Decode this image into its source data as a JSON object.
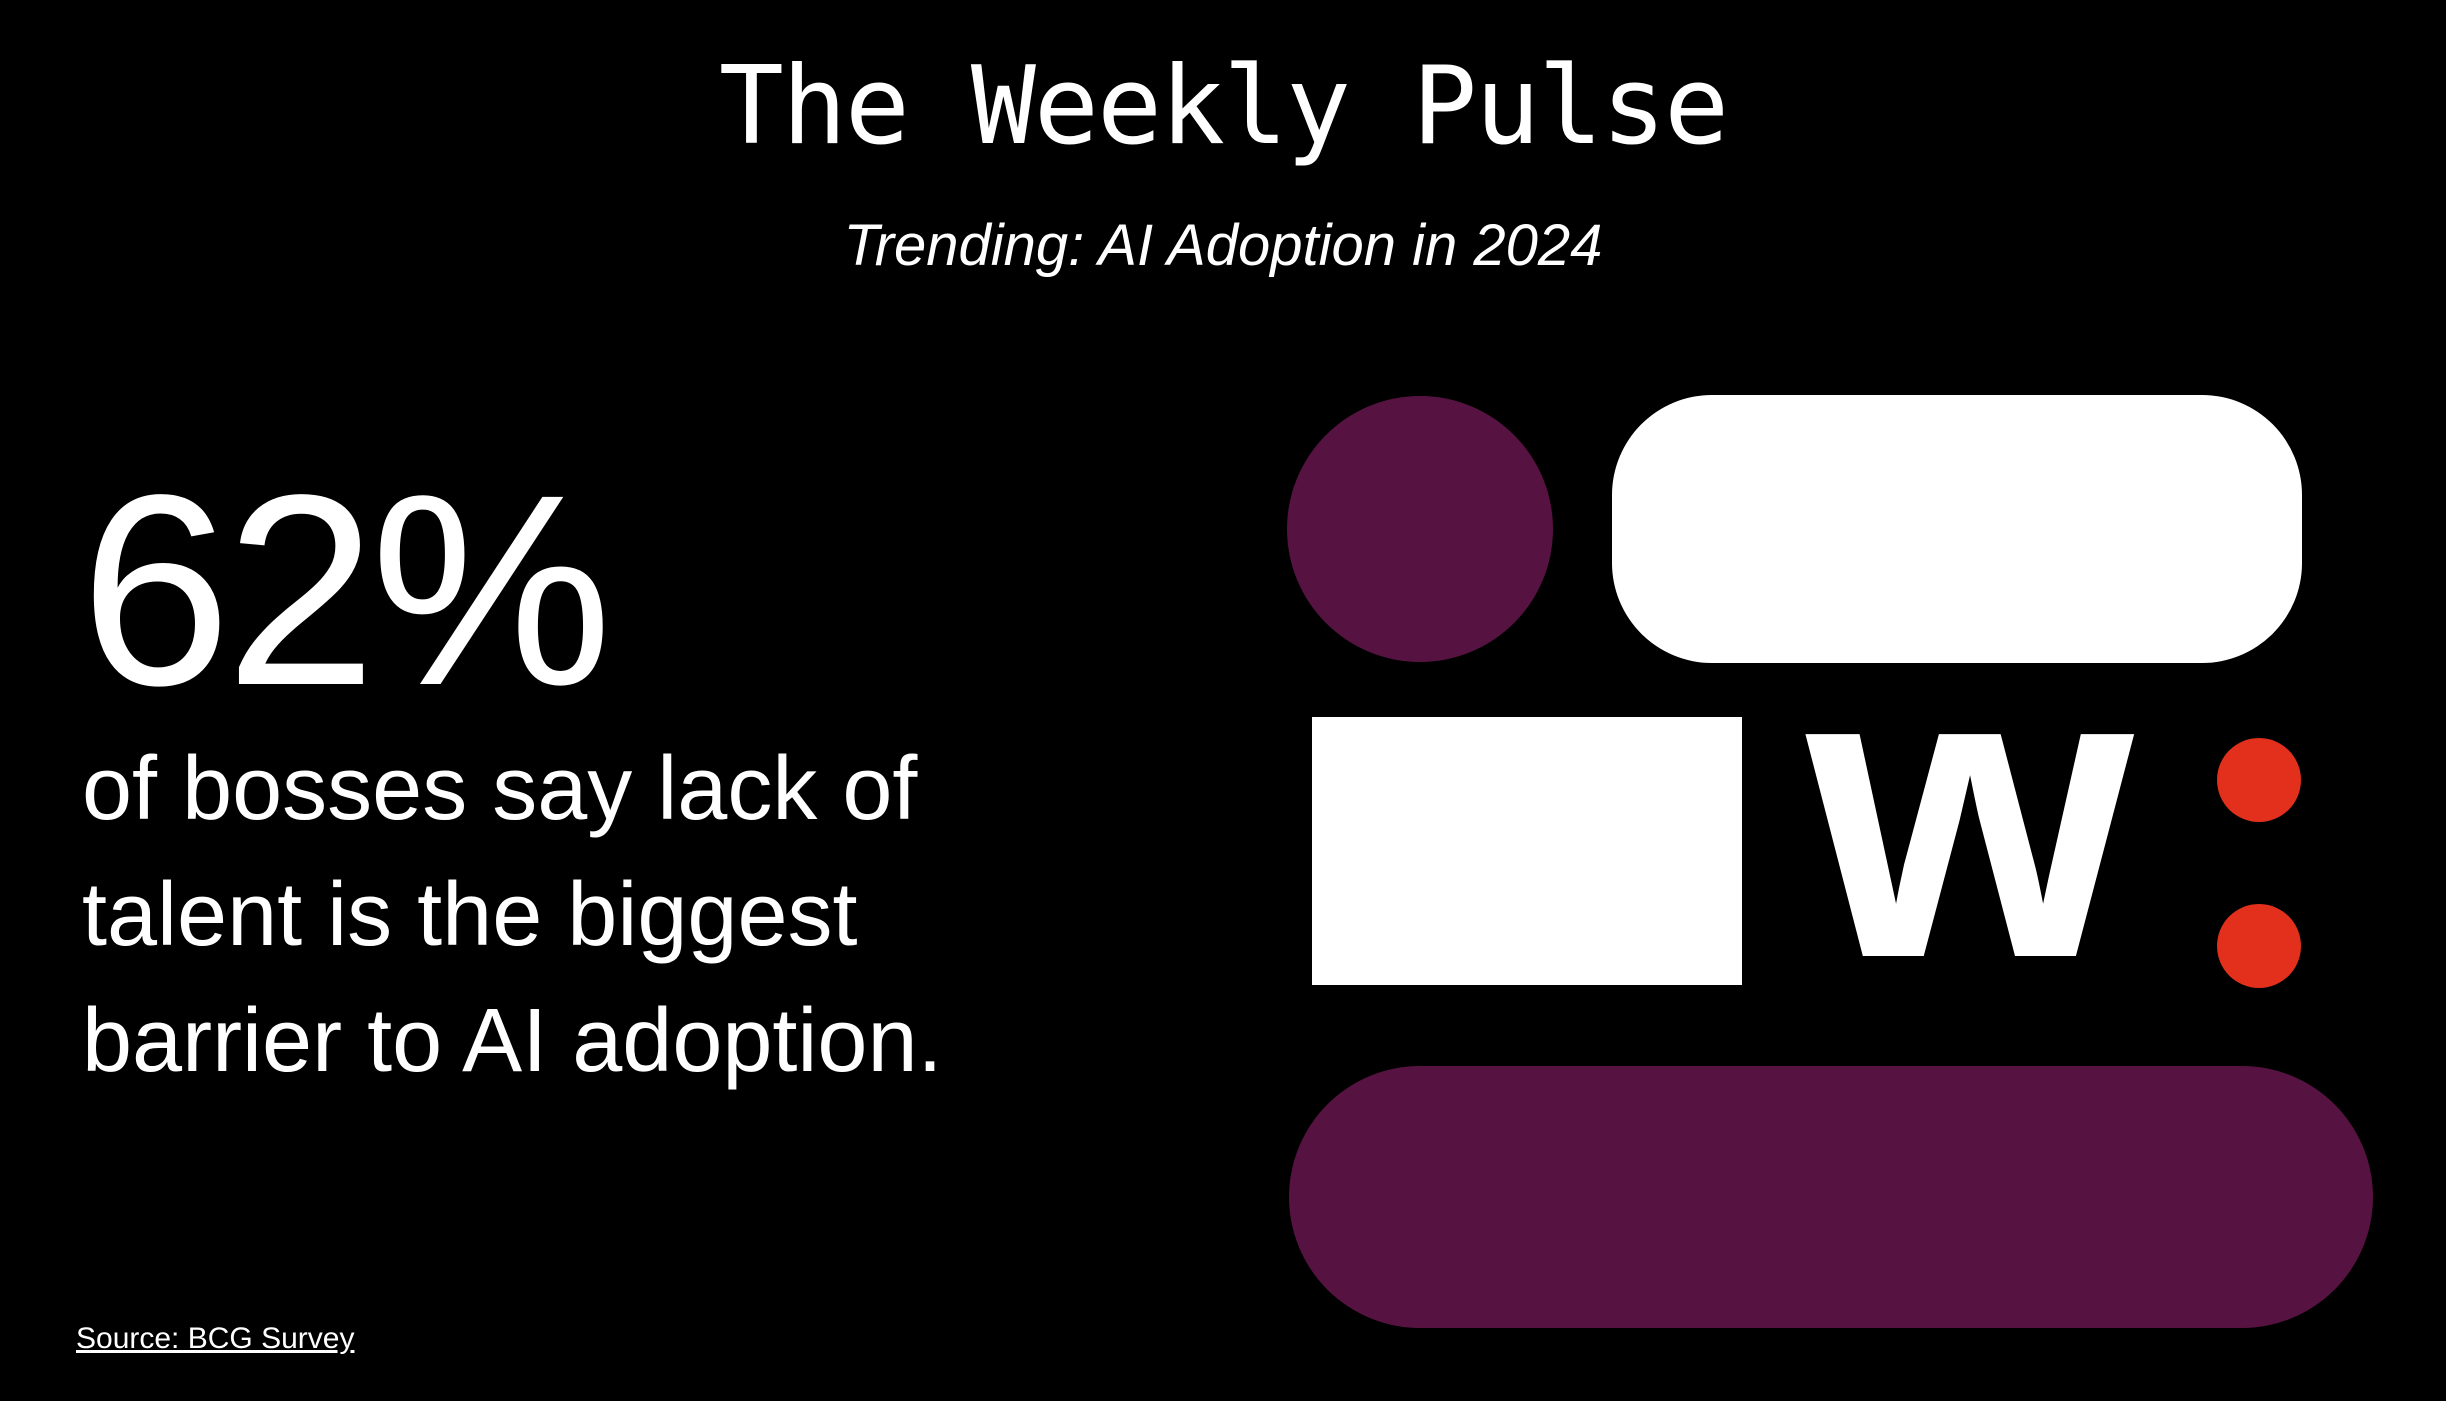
{
  "header": {
    "title": "The Weekly Pulse",
    "subtitle": "Trending: AI Adoption in 2024"
  },
  "stat": {
    "value": "62%",
    "description": "of bosses say lack of talent is the biggest barrier to AI adoption."
  },
  "source": {
    "label": "Source: BCG Survey"
  },
  "logo": {
    "letter": "w",
    "colors": {
      "plum": "#561341",
      "white": "#ffffff",
      "red": "#e2301c"
    }
  }
}
